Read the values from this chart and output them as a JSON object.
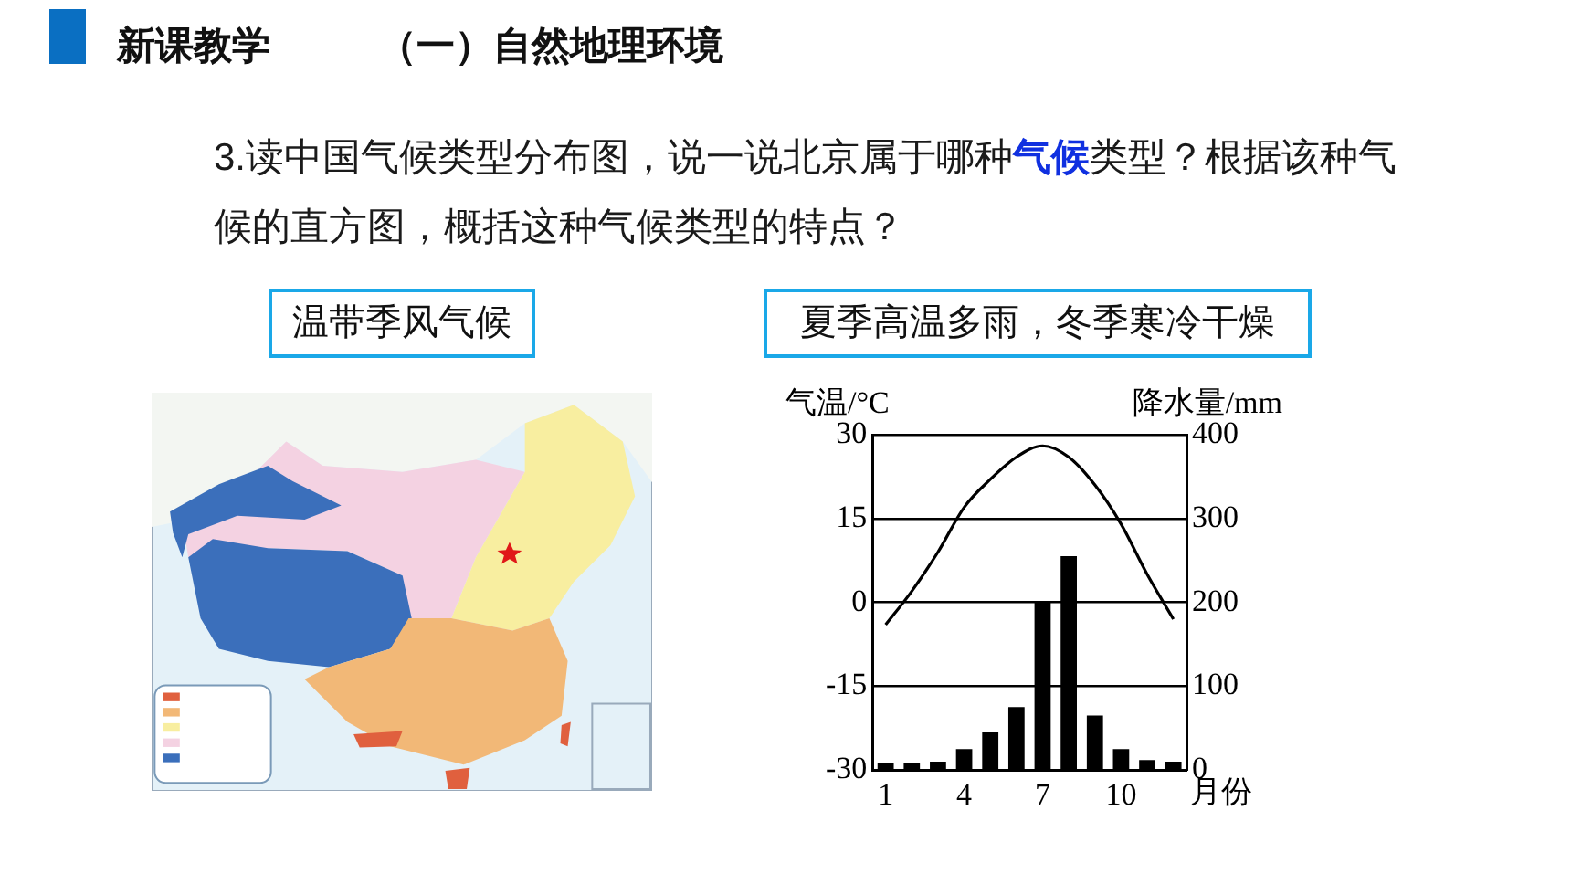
{
  "chart_data": {
    "type": "bar",
    "title": "新课教学",
    "subtitle": "（一）自然地理环境",
    "annotations": [
      "3.读中国气候类型分布图，说一说北京属于哪种",
      "气候",
      "类型？根据该种气",
      "候的直方图，概括这种气候类型的特点？",
      "温带季风气候",
      "夏季高温多雨，冬季寒冷干燥"
    ],
    "xlabel": "月份",
    "ylabel": "气温/°C",
    "y2label": "降水量/mm",
    "categories": [
      "1",
      null,
      null,
      "4",
      null,
      null,
      "7",
      null,
      null,
      "10",
      null,
      null
    ],
    "series": [
      {
        "color": "#000000",
        "axis": "y2",
        "values": [
          8,
          8,
          10,
          25,
          45,
          75,
          200,
          255,
          65,
          25,
          12,
          10
        ]
      },
      {
        "type": "line",
        "color": "#000000",
        "values": [
          -4,
          2,
          9,
          17,
          22,
          26,
          28,
          26,
          21,
          14,
          5,
          -3
        ]
      }
    ],
    "ylim": [
      -30,
      30
    ],
    "yticks": [
      -30,
      -15,
      0,
      15,
      30
    ],
    "y2lim": [
      0,
      400
    ],
    "y2ticks": [
      0,
      100,
      200,
      300,
      400
    ],
    "grid": "y"
  }
}
